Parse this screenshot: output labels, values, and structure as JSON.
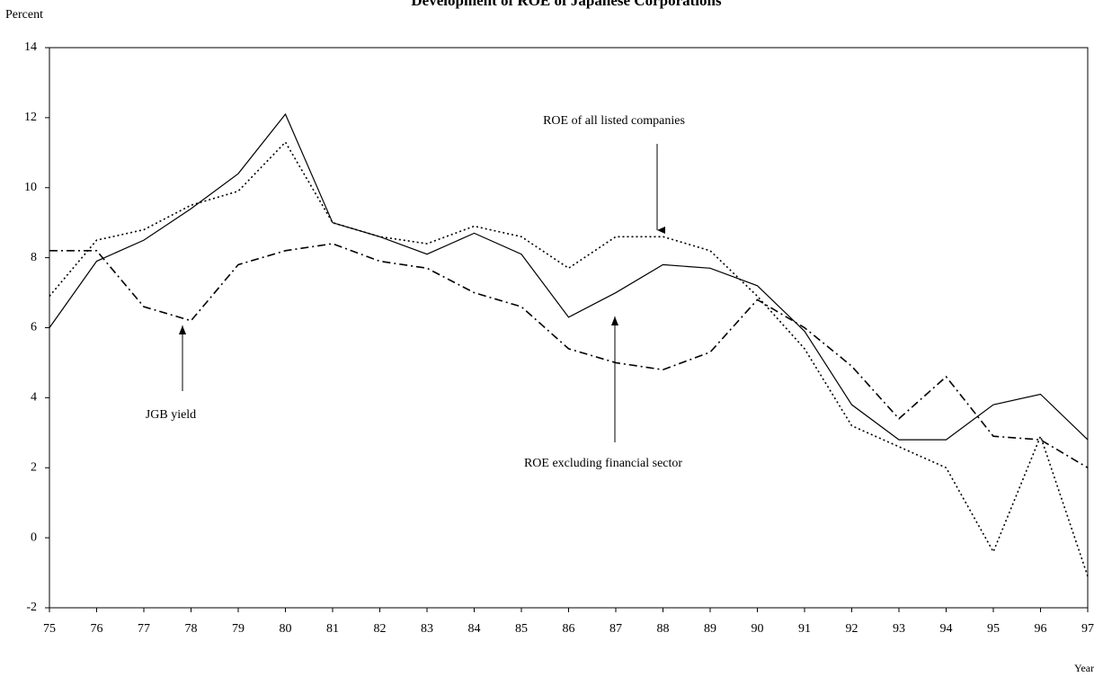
{
  "chart_data": {
    "type": "line",
    "title": "Development of ROE of Japanese Corporations",
    "y_label": "Percent",
    "x_label": "Year",
    "categories": [
      "75",
      "76",
      "77",
      "78",
      "79",
      "80",
      "81",
      "82",
      "83",
      "84",
      "85",
      "86",
      "87",
      "88",
      "89",
      "90",
      "91",
      "92",
      "93",
      "94",
      "95",
      "96",
      "97"
    ],
    "ylim": [
      -2,
      14
    ],
    "yticks": [
      -2,
      0,
      2,
      4,
      6,
      8,
      10,
      12,
      14
    ],
    "series": [
      {
        "name": "ROE excluding financial sector",
        "color": "#000000",
        "line_style": "solid",
        "values": [
          6.0,
          7.9,
          8.5,
          9.4,
          10.4,
          12.1,
          9.0,
          8.6,
          8.1,
          8.7,
          8.1,
          6.3,
          7.0,
          7.8,
          7.7,
          7.2,
          5.9,
          3.8,
          2.8,
          2.8,
          3.8,
          4.1,
          2.8
        ]
      },
      {
        "name": "ROE of all listed companies",
        "color": "#000000",
        "line_style": "dotted",
        "values": [
          6.9,
          8.5,
          8.8,
          9.5,
          9.9,
          11.3,
          9.0,
          8.6,
          8.4,
          8.9,
          8.6,
          7.7,
          8.6,
          8.6,
          8.2,
          6.9,
          5.4,
          3.2,
          2.6,
          2.0,
          -0.4,
          2.9,
          -1.1
        ]
      },
      {
        "name": "JGB yield",
        "color": "#000000",
        "line_style": "dashdot",
        "values": [
          8.2,
          8.2,
          6.6,
          6.2,
          7.8,
          8.2,
          8.4,
          7.9,
          7.7,
          7.0,
          6.6,
          5.4,
          5.0,
          4.8,
          5.3,
          6.8,
          6.0,
          4.9,
          3.4,
          4.6,
          2.9,
          2.8,
          2.0
        ]
      }
    ]
  }
}
